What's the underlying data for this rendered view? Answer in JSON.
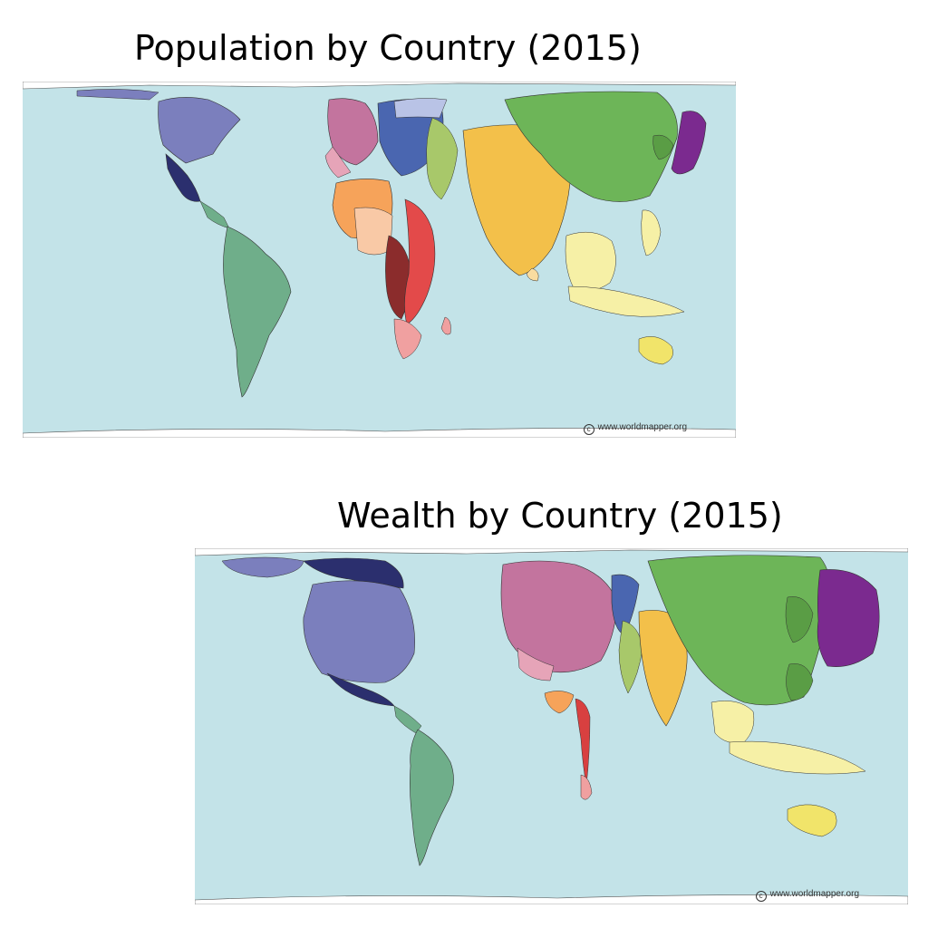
{
  "maps": [
    {
      "title": "Population by Country (2015)",
      "credit_symbol": "c",
      "credit": "www.worldmapper.org"
    },
    {
      "title": "Wealth by Country (2015)",
      "credit_symbol": "c",
      "credit": "www.worldmapper.org"
    }
  ],
  "colors": {
    "ocean": "#c3e3e8",
    "north_america": "#7b7fbd",
    "mexico": "#2b2f6e",
    "south_america": "#6fae8a",
    "europe": "#c3749e",
    "eastern_europe": "#4a66b0",
    "africa_west": "#f6a35a",
    "africa_central": "#8b2c2c",
    "africa_east": "#e34a4a",
    "middle_east": "#f7c6a6",
    "south_asia": "#f3c04a",
    "east_asia": "#6db558",
    "japan": "#7b2a8f",
    "southeast_asia": "#f6f0a6",
    "oceania": "#f1e46a"
  }
}
